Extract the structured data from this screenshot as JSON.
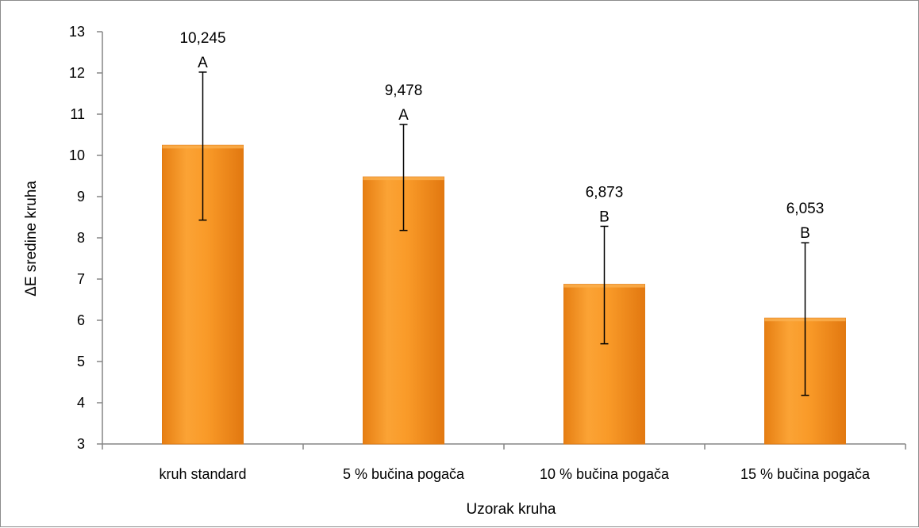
{
  "chart_data": {
    "type": "bar",
    "title": "",
    "xlabel": "Uzorak kruha",
    "ylabel": "ΔE sredine kruha",
    "ylim": [
      3,
      13
    ],
    "yticks": [
      "3",
      "4",
      "5",
      "6",
      "7",
      "8",
      "9",
      "10",
      "11",
      "12",
      "13"
    ],
    "categories": [
      "kruh standard",
      "5 % bučina pogača",
      "10 % bučina pogača",
      "15 % bučina pogača"
    ],
    "values": [
      10.245,
      9.478,
      6.873,
      6.053
    ],
    "value_labels": [
      "10,245",
      "9,478",
      "6,873",
      "6,053"
    ],
    "significance_letters": [
      "A",
      "A",
      "B",
      "B"
    ],
    "error_bars": [
      {
        "low": 8.43,
        "high": 12.02
      },
      {
        "low": 8.18,
        "high": 10.75
      },
      {
        "low": 5.43,
        "high": 8.28
      },
      {
        "low": 4.18,
        "high": 7.88
      }
    ],
    "bar_color": "#F7941D",
    "grid": false,
    "legend": "none"
  }
}
